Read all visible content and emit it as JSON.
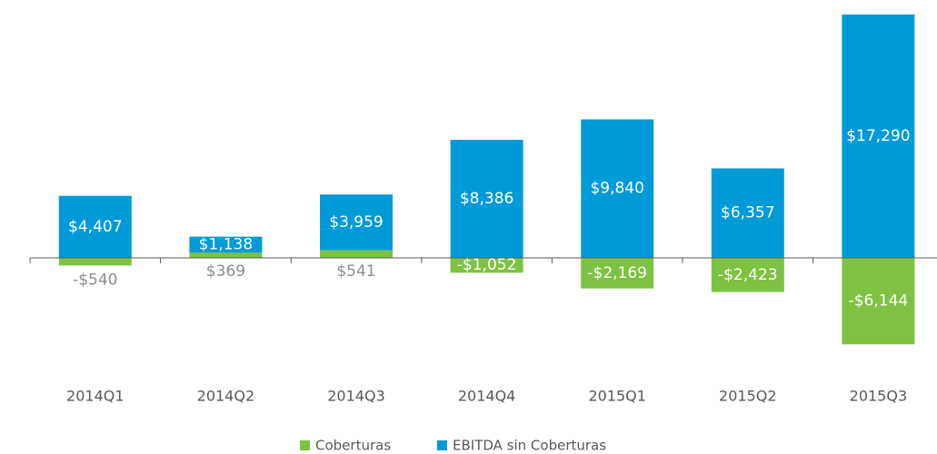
{
  "chart_data": {
    "type": "stacked_bar",
    "categories": [
      "2014Q1",
      "2014Q2",
      "2014Q3",
      "2014Q4",
      "2015Q1",
      "2015Q2",
      "2015Q3"
    ],
    "series": [
      {
        "name": "Coberturas",
        "color": "#7dc242",
        "values": [
          -540,
          369,
          541,
          -1052,
          -2169,
          -2423,
          -6144
        ],
        "value_labels": [
          "-$540",
          "$369",
          "$541",
          "-$1,052",
          "-$2,169",
          "-$2,423",
          "-$6,144"
        ]
      },
      {
        "name": "EBITDA sin Coberturas",
        "color": "#009ad9",
        "values": [
          4407,
          1138,
          3959,
          8386,
          9840,
          6357,
          17290
        ],
        "value_labels": [
          "$4,407",
          "$1,138",
          "$3,959",
          "$8,386",
          "$9,840",
          "$6,357",
          "$17,290"
        ]
      }
    ],
    "ylim": [
      -8000,
      17290
    ]
  }
}
